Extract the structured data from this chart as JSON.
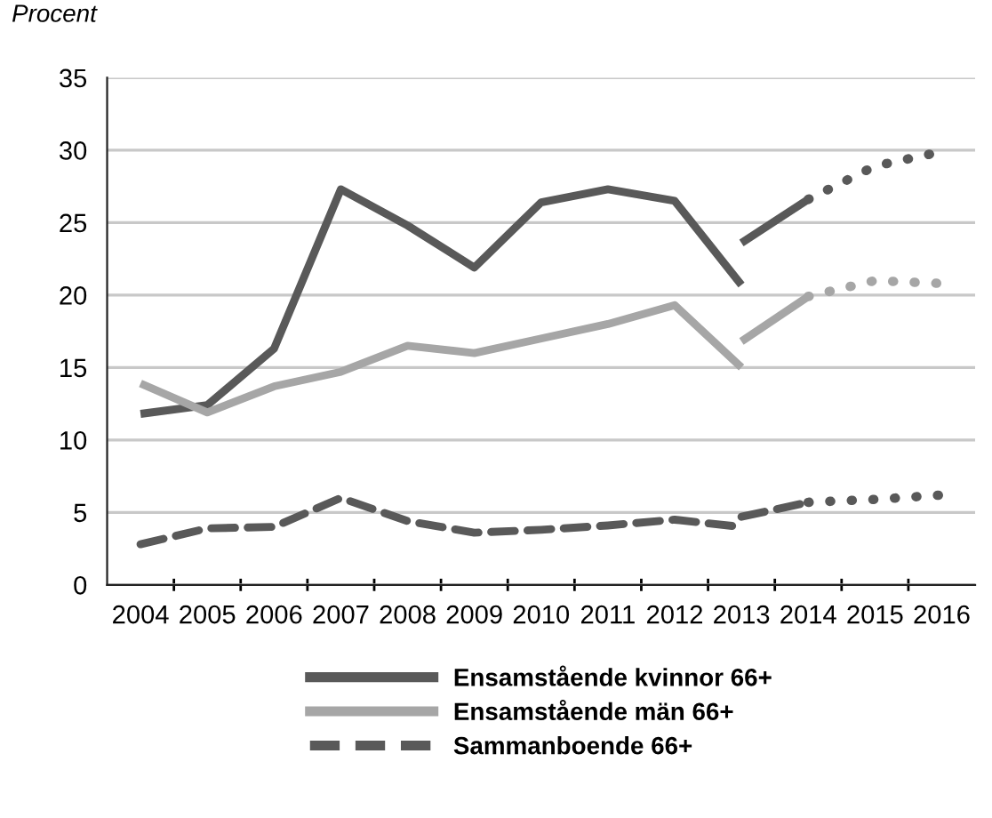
{
  "chart_data": {
    "type": "line",
    "ylabel": "Procent",
    "xlim": [
      2003.5,
      2016.5
    ],
    "xticks": [
      2004,
      2005,
      2006,
      2007,
      2008,
      2009,
      2010,
      2011,
      2012,
      2013,
      2014,
      2015,
      2016
    ],
    "ylim": [
      0,
      35
    ],
    "yticks": [
      0,
      5,
      10,
      15,
      20,
      25,
      30,
      35
    ],
    "grid": "y",
    "legend": "bottom",
    "marker": "none",
    "series": [
      {
        "name": "Ensamstående kvinnor 66+",
        "color": "#595959",
        "line_style": "solid",
        "x": [
          2004,
          2005,
          2006,
          2007,
          2008,
          2009,
          2010,
          2011,
          2012,
          2013
        ],
        "values": [
          11.8,
          12.4,
          16.3,
          27.3,
          24.8,
          21.9,
          26.4,
          27.3,
          26.5,
          20.7
        ]
      },
      {
        "name": "Ensamstående män 66+",
        "color": "#a6a6a6",
        "line_style": "solid",
        "x": [
          2004,
          2005,
          2006,
          2007,
          2008,
          2009,
          2010,
          2011,
          2012,
          2013
        ],
        "values": [
          13.9,
          11.9,
          13.7,
          14.7,
          16.5,
          16.0,
          17.0,
          18.0,
          19.3,
          15.0
        ]
      },
      {
        "name": "Sammanboende 66+",
        "color": "#595959",
        "line_style": "dashed",
        "x": [
          2004,
          2005,
          2006,
          2007,
          2008,
          2009,
          2010,
          2011,
          2012,
          2013
        ],
        "values": [
          2.8,
          3.9,
          4.0,
          6.0,
          4.4,
          3.6,
          3.8,
          4.1,
          4.5,
          4.0
        ]
      },
      {
        "color": "#595959",
        "line_style": "solid",
        "x": [
          2013,
          2014
        ],
        "values": [
          23.6,
          26.6
        ]
      },
      {
        "color": "#a6a6a6",
        "line_style": "solid",
        "x": [
          2013,
          2014
        ],
        "values": [
          16.8,
          19.9
        ]
      },
      {
        "color": "#595959",
        "line_style": "dashed",
        "x": [
          2013,
          2014
        ],
        "values": [
          4.7,
          5.7
        ]
      },
      {
        "color": "#595959",
        "line_style": "dotted",
        "x": [
          2014,
          2015,
          2016
        ],
        "values": [
          26.6,
          28.9,
          29.9
        ]
      },
      {
        "color": "#a6a6a6",
        "line_style": "dotted",
        "x": [
          2014,
          2015,
          2016
        ],
        "values": [
          19.9,
          21.0,
          20.8
        ]
      },
      {
        "color": "#595959",
        "line_style": "dotted",
        "x": [
          2014,
          2015,
          2016
        ],
        "values": [
          5.7,
          5.9,
          6.2
        ]
      }
    ]
  }
}
